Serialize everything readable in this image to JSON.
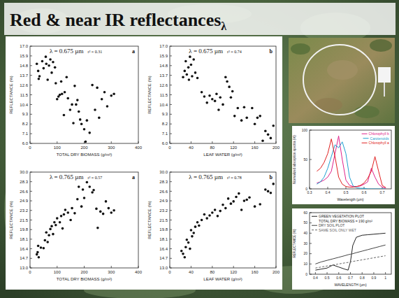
{
  "title": "Red & near IR reflectances",
  "title_subscript": "λ",
  "chart_data": [
    {
      "type": "scatter",
      "title": "λ = 0.675 µm",
      "subtitle": "r² = 0.31",
      "annotations": [
        "a"
      ],
      "x_label": "TOTAL DRY BIOMASS (g/m²)",
      "y_label": "REFLECTANCE (%)",
      "xlim": [
        0,
        400
      ],
      "xticks": [
        0,
        100,
        200,
        300,
        400
      ],
      "ylim": [
        6,
        17
      ],
      "yticks": [
        {
          "value": 6,
          "label": "6.0"
        },
        7.1,
        8.2,
        9.3,
        10.4,
        11.5,
        12.6,
        13.7,
        14.8,
        15.9,
        {
          "value": 17,
          "label": "17.0"
        }
      ],
      "grid": false,
      "color": "#111111",
      "marker": "circle",
      "x": [
        25,
        30,
        32,
        35,
        45,
        50,
        58,
        60,
        65,
        70,
        75,
        80,
        85,
        92,
        95,
        100,
        105,
        110,
        115,
        118,
        125,
        128,
        135,
        140,
        148,
        155,
        160,
        165,
        170,
        175,
        180,
        185,
        190,
        200,
        205,
        210,
        220,
        230,
        240,
        248,
        255,
        265,
        275,
        285,
        300,
        310
      ],
      "values": [
        15.0,
        14.2,
        13.3,
        13.6,
        15.3,
        14.5,
        15.8,
        15.0,
        13.2,
        14.8,
        15.5,
        14.0,
        15.2,
        14.6,
        12.8,
        11.0,
        11.3,
        11.5,
        13.0,
        11.6,
        9.2,
        11.8,
        13.5,
        11.1,
        9.8,
        10.4,
        8.3,
        12.5,
        10.4,
        10.9,
        9.6,
        8.7,
        8.2,
        7.6,
        6.2,
        8.6,
        7.2,
        12.6,
        9.8,
        12.3,
        8.9,
        11.0,
        11.8,
        10.2,
        11.4,
        11.6
      ]
    },
    {
      "type": "scatter",
      "title": "λ = 0.675 µm",
      "subtitle": "r² = 0.74",
      "annotations": [
        "b"
      ],
      "x_label": "LEAF WATER (g/m²)",
      "y_label": "REFLECTANCE (%)",
      "xlim": [
        0,
        200
      ],
      "xticks": [
        0,
        40,
        80,
        120,
        160,
        200
      ],
      "ylim": [
        6,
        17
      ],
      "yticks": [
        {
          "value": 6,
          "label": "6.0"
        },
        7.1,
        8.2,
        9.3,
        10.4,
        11.5,
        12.6,
        13.7,
        14.8,
        15.9,
        {
          "value": 17,
          "label": "17.0"
        }
      ],
      "grid": false,
      "color": "#111111",
      "marker": "circle",
      "x": [
        25,
        28,
        30,
        32,
        35,
        36,
        38,
        40,
        42,
        45,
        48,
        52,
        60,
        65,
        70,
        75,
        80,
        85,
        88,
        92,
        95,
        100,
        105,
        108,
        112,
        115,
        118,
        122,
        128,
        135,
        140,
        145,
        155,
        160,
        165,
        170,
        175,
        180,
        185,
        190,
        195
      ],
      "values": [
        13.5,
        14.2,
        15.3,
        13.8,
        14.6,
        13.2,
        15.8,
        14.9,
        13.6,
        15.5,
        14.0,
        13.4,
        11.8,
        11.3,
        10.6,
        11.4,
        11.0,
        10.8,
        11.6,
        9.8,
        11.2,
        10.4,
        13.5,
        13.0,
        12.4,
        11.2,
        11.9,
        9.1,
        10.0,
        8.6,
        10.1,
        8.9,
        10.0,
        8.2,
        8.9,
        9.1,
        6.3,
        7.4,
        7.0,
        6.6,
        8.0
      ]
    },
    {
      "type": "scatter",
      "title": "λ = 0.765 µm",
      "subtitle": "r² = 0.57",
      "annotations": [
        "a"
      ],
      "x_label": "TOTAL DRY BIOMASS (g/m²)",
      "y_label": "REFLECTANCE (%)",
      "xlim": [
        0,
        400
      ],
      "xticks": [
        0,
        100,
        200,
        300,
        400
      ],
      "ylim": [
        13,
        30
      ],
      "yticks": [
        {
          "value": 13,
          "label": "13.0"
        },
        14.7,
        16.4,
        18.1,
        19.8,
        21.5,
        23.2,
        24.9,
        26.6,
        28.3,
        {
          "value": 30,
          "label": "30.0"
        }
      ],
      "grid": false,
      "color": "#111111",
      "marker": "circle",
      "x": [
        25,
        28,
        30,
        32,
        40,
        50,
        55,
        60,
        65,
        70,
        75,
        80,
        85,
        90,
        95,
        100,
        110,
        115,
        120,
        125,
        130,
        140,
        150,
        155,
        165,
        175,
        180,
        190,
        195,
        200,
        210,
        220,
        230,
        235,
        245,
        250,
        260,
        270,
        280,
        290,
        300,
        310
      ],
      "values": [
        15.4,
        15.8,
        16.9,
        14.9,
        16.6,
        16.5,
        17.9,
        19.3,
        17.6,
        18.8,
        19.9,
        20.4,
        19.0,
        21.1,
        20.6,
        21.8,
        21.1,
        22.2,
        20.0,
        22.5,
        23.3,
        22.8,
        21.5,
        23.6,
        22.7,
        25.2,
        27.4,
        23.9,
        26.9,
        25.4,
        28.2,
        27.4,
        26.4,
        26.8,
        23.5,
        20.1,
        23.0,
        22.6,
        24.8,
        23.6,
        22.8,
        23.2
      ]
    },
    {
      "type": "scatter",
      "title": "λ = 0.765 µm",
      "subtitle": "r² = 0.78",
      "annotations": [
        "b"
      ],
      "x_label": "LEAF WATER (g/m²)",
      "y_label": "REFLECTANCE (%)",
      "xlim": [
        0,
        200
      ],
      "xticks": [
        0,
        40,
        80,
        120,
        160,
        200
      ],
      "ylim": [
        13,
        30
      ],
      "yticks": [
        {
          "value": 13,
          "label": "13.0"
        },
        14.7,
        16.4,
        18.1,
        19.8,
        21.5,
        23.2,
        24.9,
        26.6,
        28.3,
        {
          "value": 30,
          "label": "30.0"
        }
      ],
      "grid": false,
      "color": "#111111",
      "marker": "circle",
      "x": [
        22,
        25,
        28,
        30,
        32,
        35,
        38,
        40,
        42,
        45,
        48,
        52,
        55,
        60,
        65,
        70,
        75,
        80,
        85,
        90,
        95,
        100,
        105,
        110,
        115,
        120,
        125,
        130,
        135,
        140,
        145,
        150,
        160,
        170,
        180,
        185,
        190,
        195
      ],
      "values": [
        16.0,
        15.5,
        14.9,
        16.7,
        18.0,
        17.5,
        16.4,
        19.7,
        18.6,
        19.2,
        20.3,
        21.1,
        20.5,
        21.5,
        22.5,
        21.8,
        22.3,
        22.8,
        23.3,
        22.2,
        23.1,
        24.2,
        23.6,
        25.3,
        24.4,
        24.8,
        25.6,
        26.2,
        23.3,
        24.9,
        25.1,
        25.5,
        23.9,
        24.3,
        26.9,
        26.6,
        26.3,
        27.9
      ]
    },
    {
      "type": "line",
      "x_label": "Wavelength (µm)",
      "y_label": "Normalized absorption spectra (%)",
      "xlim": [
        0.3,
        0.75
      ],
      "xticks": [
        0.3,
        0.4,
        0.5,
        0.6,
        0.7
      ],
      "ylim": [
        0,
        100
      ],
      "yticks": [
        0,
        50,
        100
      ],
      "grid": false,
      "legend": "upper right",
      "x": [
        0.34,
        0.36,
        0.38,
        0.4,
        0.42,
        0.44,
        0.46,
        0.48,
        0.5,
        0.52,
        0.54,
        0.56,
        0.58,
        0.6,
        0.62,
        0.64,
        0.66,
        0.68,
        0.7,
        0.72
      ],
      "series": [
        {
          "name": "Chlorophyll b",
          "color": "#e0208a",
          "line_style": "solid",
          "values": [
            10,
            12,
            15,
            20,
            30,
            60,
            90,
            50,
            15,
            6,
            4,
            4,
            5,
            8,
            12,
            35,
            20,
            8,
            3,
            1
          ]
        },
        {
          "name": "Carotenoids",
          "color": "#1e9fd0",
          "line_style": "solid",
          "values": [
            8,
            12,
            20,
            35,
            55,
            75,
            70,
            80,
            60,
            20,
            5,
            2,
            1,
            1,
            0,
            0,
            0,
            0,
            0,
            0
          ]
        },
        {
          "name": "Chlorophyll a",
          "color": "#e02020",
          "line_style": "solid",
          "values": [
            30,
            35,
            45,
            60,
            85,
            55,
            20,
            8,
            4,
            3,
            3,
            4,
            6,
            10,
            18,
            30,
            55,
            30,
            6,
            2
          ]
        }
      ]
    },
    {
      "type": "line",
      "x_label": "WAVELENGTH (µm)",
      "y_label": "REFLECTANCE (%)",
      "annotations": [
        "TOTAL DRY BIOMASS = 190 g/m²"
      ],
      "xlim": [
        0.35,
        1.05
      ],
      "xticks": [
        0.4,
        0.5,
        0.6,
        0.7,
        0.8,
        0.9,
        1.0
      ],
      "ylim": [
        0,
        60
      ],
      "yticks": [
        0,
        10,
        20,
        30,
        40,
        50,
        60
      ],
      "grid": false,
      "legend": "upper left",
      "x": [
        0.4,
        0.45,
        0.5,
        0.55,
        0.6,
        0.65,
        0.68,
        0.7,
        0.72,
        0.75,
        0.8,
        0.85,
        0.9,
        0.95,
        1.0
      ],
      "series": [
        {
          "name": "GREEN VEGETATION PLOT",
          "color": "#222222",
          "line_style": "solid",
          "values": [
            4,
            5,
            6,
            9,
            7,
            5,
            4,
            12,
            28,
            36,
            38,
            38.5,
            39,
            39.5,
            40
          ]
        },
        {
          "name": "DRY SOIL PLOT",
          "color": "#444444",
          "line_style": "solid",
          "values": [
            10,
            12,
            13.5,
            15,
            16.5,
            18,
            19,
            19.5,
            20,
            21,
            22.5,
            24,
            25.5,
            27,
            28.5
          ]
        },
        {
          "name": "SAME SOIL ONLY WET",
          "color": "#666666",
          "line_style": "dashed",
          "values": [
            6,
            7,
            8,
            9,
            10,
            11,
            11.5,
            12,
            12.5,
            13,
            14,
            15,
            16,
            17,
            18
          ]
        }
      ]
    }
  ]
}
